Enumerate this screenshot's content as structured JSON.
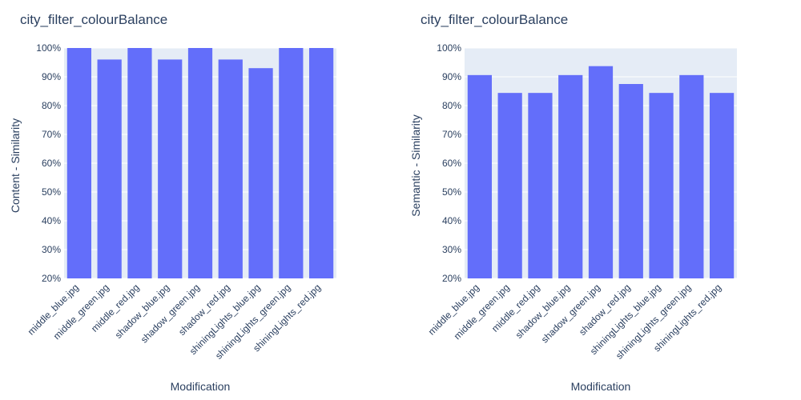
{
  "colors": {
    "bar": "#636efa",
    "plot_bg": "#e5ecf6",
    "grid": "#ffffff",
    "text": "#2a3f5f"
  },
  "chart_data": [
    {
      "type": "bar",
      "title": "city_filter_colourBalance",
      "xlabel": "Modification",
      "ylabel": "Content - Similarity",
      "categories": [
        "middle_blue.jpg",
        "middle_green.jpg",
        "middle_red.jpg",
        "shadow_blue.jpg",
        "shadow_green.jpg",
        "shadow_red.jpg",
        "shiningLights_blue.jpg",
        "shiningLights_green.jpg",
        "shiningLights_red.jpg"
      ],
      "values": [
        1.0,
        0.96,
        1.0,
        0.96,
        1.0,
        0.96,
        0.93,
        1.0,
        1.0
      ],
      "ylim": [
        0.2,
        1.0
      ],
      "yticks": [
        "20%",
        "30%",
        "40%",
        "50%",
        "60%",
        "70%",
        "80%",
        "90%",
        "100%"
      ],
      "grid": true,
      "legend": "none"
    },
    {
      "type": "bar",
      "title": "city_filter_colourBalance",
      "xlabel": "Modification",
      "ylabel": "Semantic - Similarity",
      "categories": [
        "middle_blue.jpg",
        "middle_green.jpg",
        "middle_red.jpg",
        "shadow_blue.jpg",
        "shadow_green.jpg",
        "shadow_red.jpg",
        "shiningLights_blue.jpg",
        "shiningLights_green.jpg",
        "shiningLights_red.jpg"
      ],
      "values": [
        0.906,
        0.844,
        0.844,
        0.906,
        0.937,
        0.875,
        0.844,
        0.906,
        0.844
      ],
      "ylim": [
        0.2,
        1.0
      ],
      "yticks": [
        "20%",
        "30%",
        "40%",
        "50%",
        "60%",
        "70%",
        "80%",
        "90%",
        "100%"
      ],
      "grid": true,
      "legend": "none"
    }
  ]
}
